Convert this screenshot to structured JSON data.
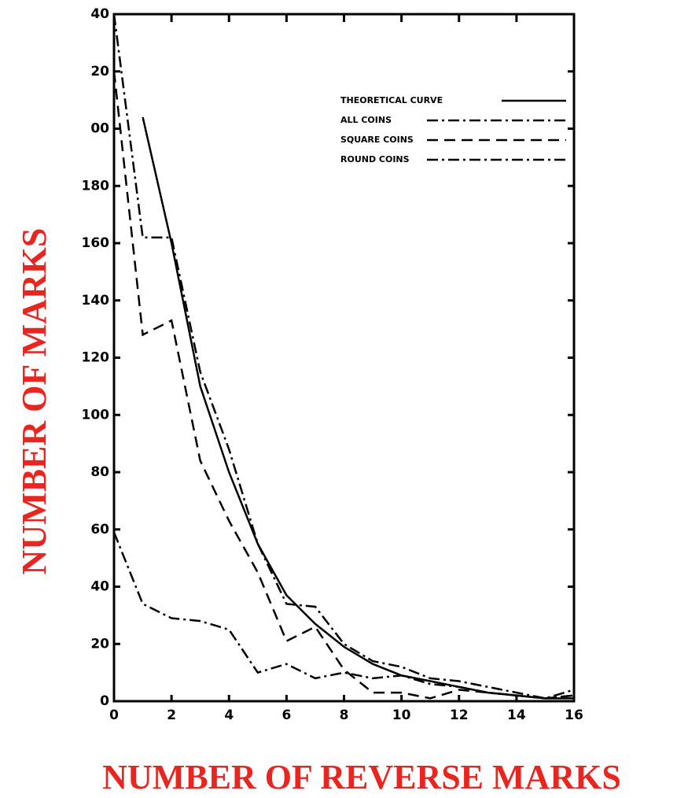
{
  "chart_data": {
    "type": "line",
    "x_label": "NUMBER OF REVERSE MARKS",
    "y_label": "NUMBER OF MARKS",
    "x": [
      0,
      1,
      2,
      3,
      4,
      5,
      6,
      7,
      8,
      9,
      10,
      11,
      12,
      13,
      14,
      15,
      16
    ],
    "series": [
      {
        "name": "THEORETICAL CURVE",
        "color": "#000000",
        "dash": "solid",
        "values": [
          null,
          204,
          160,
          110,
          80,
          55,
          37,
          27,
          19,
          13,
          9,
          7,
          5,
          3,
          2,
          1,
          1
        ]
      },
      {
        "name": "ALL COINS",
        "color": "#000000",
        "dash": "dash-dot",
        "values": [
          240,
          162,
          162,
          115,
          88,
          55,
          34,
          33,
          20,
          14,
          12,
          8,
          7,
          5,
          3,
          1,
          4
        ]
      },
      {
        "name": "SQUARE COINS",
        "color": "#000000",
        "dash": "dashed",
        "values": [
          220,
          128,
          133,
          84,
          63,
          45,
          21,
          26,
          11,
          3,
          3,
          1,
          4,
          3,
          2,
          1,
          2
        ]
      },
      {
        "name": "ROUND COINS",
        "color": "#000000",
        "dash": "dash-dot",
        "values": [
          59,
          34,
          29,
          28,
          25,
          10,
          13,
          8,
          10,
          8,
          9,
          6,
          5,
          3,
          2,
          1,
          2
        ]
      }
    ],
    "xlim": [
      0,
      16
    ],
    "xticks": [
      0,
      2,
      4,
      6,
      8,
      10,
      12,
      14,
      16
    ],
    "ylim": [
      0,
      240
    ],
    "yticks": [
      0,
      20,
      40,
      60,
      80,
      100,
      120,
      140,
      160,
      180,
      {
        "value": 200,
        "label": "00"
      },
      {
        "value": 220,
        "label": "20"
      },
      {
        "value": 240,
        "label": "40"
      }
    ],
    "legend": "upper right",
    "axis_label_color": "#e8251f"
  }
}
